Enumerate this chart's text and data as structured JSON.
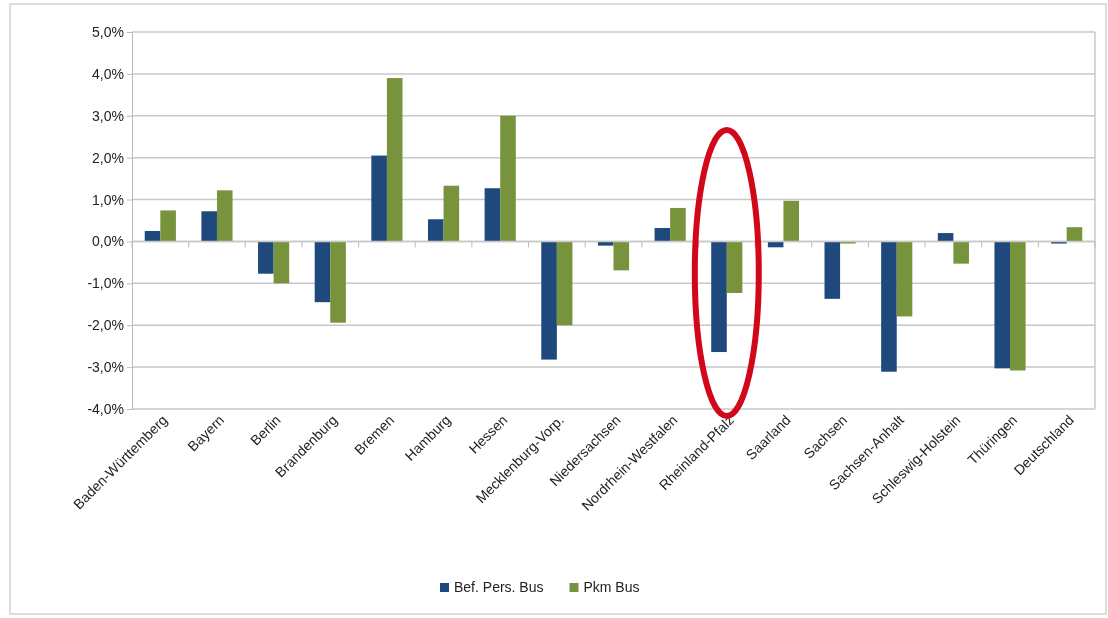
{
  "chart_data": {
    "type": "bar",
    "categories": [
      "Baden-Württemberg",
      "Bayern",
      "Berlin",
      "Brandenburg",
      "Bremen",
      "Hamburg",
      "Hessen",
      "Mecklenburg-Vorp.",
      "Niedersachsen",
      "Nordrhein-Westfalen",
      "Rheinland-Pfalz",
      "Saarland",
      "Sachsen",
      "Sachsen-Anhalt",
      "Schleswig-Holstein",
      "Thüringen",
      "Deutschland"
    ],
    "series": [
      {
        "name": "Bef. Pers. Bus",
        "color": "#1f497d",
        "values": [
          0.25,
          0.72,
          -0.77,
          -1.45,
          2.05,
          0.53,
          1.27,
          -2.82,
          -0.1,
          0.32,
          -2.64,
          -0.14,
          -1.37,
          -3.11,
          0.2,
          -3.03,
          -0.05
        ]
      },
      {
        "name": "Pkm Bus",
        "color": "#77933c",
        "values": [
          0.74,
          1.22,
          -1.0,
          -1.94,
          3.9,
          1.33,
          3.0,
          -2.0,
          -0.69,
          0.8,
          -1.23,
          0.97,
          -0.05,
          -1.79,
          -0.53,
          -3.08,
          0.34
        ]
      }
    ],
    "ylim": [
      -4,
      5
    ],
    "yticks": [
      {
        "value": -4,
        "label": "-4,0%"
      },
      {
        "value": -3,
        "label": "-3,0%"
      },
      {
        "value": -2,
        "label": "-2,0%"
      },
      {
        "value": -1,
        "label": "-1,0%"
      },
      {
        "value": 0,
        "label": "0,0%"
      },
      {
        "value": 1,
        "label": "1,0%"
      },
      {
        "value": 2,
        "label": "2,0%"
      },
      {
        "value": 3,
        "label": "3,0%"
      },
      {
        "value": 4,
        "label": "4,0%"
      },
      {
        "value": 5,
        "label": "5,0%"
      }
    ],
    "grid": "y",
    "legend": "bottom"
  }
}
